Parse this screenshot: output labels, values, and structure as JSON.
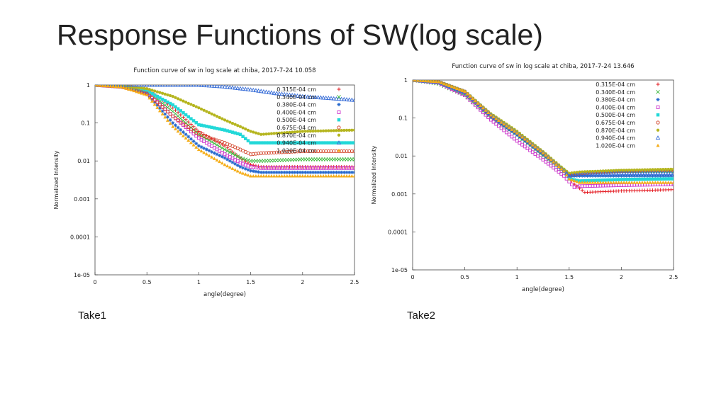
{
  "slide": {
    "title": "Response Functions of SW(log scale)",
    "captions": [
      "Take1",
      "Take2"
    ]
  },
  "chart_data": [
    {
      "type": "scatter",
      "title": "Function curve of sw in log scale at chiba, 2017-7-24 10.058",
      "xlabel": "angle(degree)",
      "ylabel": "Normalized Intensity",
      "xlim": [
        0,
        2.5
      ],
      "ylim": [
        1e-05,
        1
      ],
      "yscale": "log",
      "xticks": [
        "0",
        "0.5",
        "1",
        "1.5",
        "2",
        "2.5"
      ],
      "yticks": [
        "1",
        "0.1",
        "0.01",
        "0.001",
        "0.0001",
        "1e-05"
      ],
      "legend_position": "top-right",
      "series": [
        {
          "name": "0.315E-04 cm",
          "marker": "plus",
          "color": "#e3161d",
          "x": [
            0,
            0.25,
            0.5,
            0.75,
            1.0,
            1.25,
            1.4,
            1.5,
            1.6,
            2.0,
            2.5
          ],
          "y": [
            1,
            0.95,
            0.8,
            0.25,
            0.06,
            0.025,
            0.012,
            0.008,
            0.007,
            0.007,
            0.007
          ]
        },
        {
          "name": "0.340E-04 cm",
          "marker": "x",
          "color": "#3db93d",
          "x": [
            0,
            0.25,
            0.5,
            0.75,
            1.0,
            1.25,
            1.4,
            1.5,
            1.6,
            2.0,
            2.5
          ],
          "y": [
            1,
            0.9,
            0.7,
            0.2,
            0.05,
            0.02,
            0.012,
            0.01,
            0.01,
            0.011,
            0.011
          ]
        },
        {
          "name": "0.380E-04 cm",
          "marker": "star",
          "color": "#2266cc",
          "x": [
            0,
            0.25,
            0.5,
            0.75,
            1.0,
            1.25,
            1.4,
            1.5,
            1.6,
            2.0,
            2.5
          ],
          "y": [
            1,
            0.9,
            0.6,
            0.1,
            0.025,
            0.012,
            0.007,
            0.0055,
            0.005,
            0.005,
            0.005
          ]
        },
        {
          "name": "0.400E-04 cm",
          "marker": "square",
          "color": "#cc33cc",
          "x": [
            0,
            0.25,
            0.5,
            0.75,
            1.0,
            1.25,
            1.4,
            1.5,
            1.6,
            2.0,
            2.5
          ],
          "y": [
            1,
            0.9,
            0.65,
            0.15,
            0.04,
            0.015,
            0.009,
            0.007,
            0.0065,
            0.0065,
            0.0065
          ]
        },
        {
          "name": "0.500E-04 cm",
          "marker": "filled-square",
          "color": "#22d8d8",
          "x": [
            0,
            0.25,
            0.5,
            0.75,
            1.0,
            1.25,
            1.4,
            1.5,
            1.6,
            2.0,
            2.5
          ],
          "y": [
            1,
            0.95,
            0.7,
            0.3,
            0.09,
            0.065,
            0.05,
            0.03,
            0.03,
            0.03,
            0.03
          ]
        },
        {
          "name": "0.675E-04 cm",
          "marker": "circle",
          "color": "#d2452a",
          "x": [
            0,
            0.25,
            0.5,
            0.75,
            1.0,
            1.25,
            1.4,
            1.5,
            1.6,
            2.0,
            2.5
          ],
          "y": [
            1,
            0.9,
            0.6,
            0.15,
            0.05,
            0.03,
            0.02,
            0.015,
            0.016,
            0.018,
            0.018
          ]
        },
        {
          "name": "0.870E-04 cm",
          "marker": "filled-circle",
          "color": "#b5b51f",
          "x": [
            0,
            0.25,
            0.5,
            0.75,
            1.0,
            1.25,
            1.4,
            1.5,
            1.6,
            2.0,
            2.5
          ],
          "y": [
            1,
            0.95,
            0.8,
            0.5,
            0.25,
            0.12,
            0.08,
            0.06,
            0.05,
            0.06,
            0.065
          ]
        },
        {
          "name": "0.940E-04 cm",
          "marker": "triangle",
          "color": "#3a6fd8",
          "x": [
            0,
            0.25,
            0.5,
            0.75,
            1.0,
            1.25,
            1.5,
            1.75,
            2.0,
            2.25,
            2.5
          ],
          "y": [
            1,
            1,
            1,
            1,
            1,
            0.9,
            0.75,
            0.6,
            0.5,
            0.45,
            0.4
          ]
        },
        {
          "name": "1.020E-04 cm",
          "marker": "filled-triangle",
          "color": "#f5ad18",
          "x": [
            0,
            0.25,
            0.5,
            0.75,
            1.0,
            1.25,
            1.4,
            1.5,
            1.6,
            2.0,
            2.5
          ],
          "y": [
            1,
            0.9,
            0.55,
            0.08,
            0.02,
            0.008,
            0.005,
            0.004,
            0.004,
            0.004,
            0.004
          ]
        }
      ]
    },
    {
      "type": "scatter",
      "title": "Function curve of sw in log scale at chiba, 2017-7-24 13.646",
      "xlabel": "angle(degree)",
      "ylabel": "Normalized Intensity",
      "xlim": [
        0,
        2.5
      ],
      "ylim": [
        1e-05,
        1
      ],
      "yscale": "log",
      "xticks": [
        "0",
        "0.5",
        "1",
        "1.5",
        "2",
        "2.5"
      ],
      "yticks": [
        "1",
        "0.1",
        "0.01",
        "0.001",
        "0.0001",
        "1e-05"
      ],
      "legend_position": "top-right",
      "series": [
        {
          "name": "0.315E-04 cm",
          "marker": "plus",
          "color": "#e3161d",
          "x": [
            0,
            0.25,
            0.5,
            0.75,
            1.0,
            1.25,
            1.45,
            1.55,
            1.65,
            2.0,
            2.5
          ],
          "y": [
            1,
            0.9,
            0.5,
            0.12,
            0.04,
            0.012,
            0.004,
            0.0018,
            0.0011,
            0.0012,
            0.0013
          ]
        },
        {
          "name": "0.340E-04 cm",
          "marker": "x",
          "color": "#3db93d",
          "x": [
            0,
            0.25,
            0.5,
            0.75,
            1.0,
            1.25,
            1.45,
            1.5,
            1.6,
            2.0,
            2.5
          ],
          "y": [
            1,
            0.8,
            0.4,
            0.1,
            0.035,
            0.01,
            0.004,
            0.003,
            0.0035,
            0.004,
            0.004
          ]
        },
        {
          "name": "0.380E-04 cm",
          "marker": "star",
          "color": "#2266cc",
          "x": [
            0,
            0.25,
            0.5,
            0.75,
            1.0,
            1.25,
            1.45,
            1.5,
            1.6,
            2.0,
            2.5
          ],
          "y": [
            1,
            0.85,
            0.45,
            0.11,
            0.036,
            0.011,
            0.004,
            0.003,
            0.003,
            0.003,
            0.003
          ]
        },
        {
          "name": "0.400E-04 cm",
          "marker": "square",
          "color": "#cc33cc",
          "x": [
            0,
            0.25,
            0.5,
            0.75,
            1.0,
            1.25,
            1.45,
            1.55,
            1.6,
            2.0,
            2.5
          ],
          "y": [
            1,
            0.85,
            0.4,
            0.09,
            0.025,
            0.008,
            0.003,
            0.0015,
            0.0016,
            0.0017,
            0.0018
          ]
        },
        {
          "name": "0.500E-04 cm",
          "marker": "filled-square",
          "color": "#22d8d8",
          "x": [
            0,
            0.25,
            0.5,
            0.75,
            1.0,
            1.25,
            1.45,
            1.5,
            1.6,
            2.0,
            2.5
          ],
          "y": [
            1,
            0.9,
            0.5,
            0.12,
            0.04,
            0.012,
            0.004,
            0.0025,
            0.0022,
            0.0024,
            0.0025
          ]
        },
        {
          "name": "0.675E-04 cm",
          "marker": "circle",
          "color": "#d2452a",
          "x": [
            0,
            0.25,
            0.5,
            0.75,
            1.0,
            1.25,
            1.45,
            1.5,
            1.6,
            2.0,
            2.5
          ],
          "y": [
            1,
            0.9,
            0.5,
            0.12,
            0.04,
            0.012,
            0.004,
            0.0032,
            0.0035,
            0.004,
            0.0042
          ]
        },
        {
          "name": "0.870E-04 cm",
          "marker": "filled-circle",
          "color": "#b5b51f",
          "x": [
            0,
            0.25,
            0.5,
            0.75,
            1.0,
            1.25,
            1.45,
            1.5,
            1.6,
            2.0,
            2.5
          ],
          "y": [
            1,
            0.9,
            0.5,
            0.13,
            0.045,
            0.013,
            0.0045,
            0.0035,
            0.0038,
            0.0042,
            0.0045
          ]
        },
        {
          "name": "0.940E-04 cm",
          "marker": "triangle",
          "color": "#3a6fd8",
          "x": [
            0,
            0.25,
            0.5,
            0.75,
            1.0,
            1.25,
            1.45,
            1.5,
            1.6,
            2.0,
            2.5
          ],
          "y": [
            1,
            0.88,
            0.48,
            0.12,
            0.04,
            0.012,
            0.004,
            0.003,
            0.0032,
            0.0035,
            0.0035
          ]
        },
        {
          "name": "1.020E-04 cm",
          "marker": "filled-triangle",
          "color": "#f5ad18",
          "x": [
            0,
            0.25,
            0.5,
            0.75,
            1.0,
            1.25,
            1.45,
            1.5,
            1.6,
            2.0,
            2.5
          ],
          "y": [
            1,
            0.9,
            0.5,
            0.12,
            0.04,
            0.012,
            0.004,
            0.0025,
            0.002,
            0.002,
            0.002
          ]
        }
      ]
    }
  ]
}
